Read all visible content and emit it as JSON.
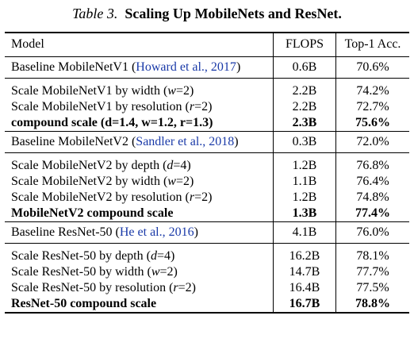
{
  "caption": {
    "number": "Table 3.",
    "title": "Scaling Up MobileNets and ResNet."
  },
  "header": {
    "model": "Model",
    "flops": "FLOPS",
    "acc": "Top-1 Acc."
  },
  "sections": [
    {
      "baseline": {
        "model": "Baseline MobileNetV1",
        "cite": "Howard et al., 2017",
        "flops": "0.6B",
        "acc": "70.6%"
      },
      "rows": [
        {
          "pre": "Scale MobileNetV1 by width (",
          "var": "w",
          "post": "=2)",
          "flops": "2.2B",
          "acc": "74.2%"
        },
        {
          "pre": "Scale MobileNetV1 by resolution (",
          "var": "r",
          "post": "=2)",
          "flops": "2.2B",
          "acc": "72.7%"
        },
        {
          "pre": "compound scale (d=1.4, w=1.2, r=1.3)",
          "flops": "2.3B",
          "acc": "75.6%",
          "bold": true
        }
      ]
    },
    {
      "baseline": {
        "model": "Baseline MobileNetV2",
        "cite": "Sandler et al., 2018",
        "flops": "0.3B",
        "acc": "72.0%"
      },
      "rows": [
        {
          "pre": "Scale MobileNetV2 by depth (",
          "var": "d",
          "post": "=4)",
          "flops": "1.2B",
          "acc": "76.8%"
        },
        {
          "pre": "Scale MobileNetV2 by width (",
          "var": "w",
          "post": "=2)",
          "flops": "1.1B",
          "acc": "76.4%"
        },
        {
          "pre": "Scale MobileNetV2 by resolution (",
          "var": "r",
          "post": "=2)",
          "flops": "1.2B",
          "acc": "74.8%"
        },
        {
          "pre": "MobileNetV2 compound scale",
          "flops": "1.3B",
          "acc": "77.4%",
          "bold": true
        }
      ]
    },
    {
      "baseline": {
        "model": "Baseline ResNet-50",
        "cite": "He et al., 2016",
        "flops": "4.1B",
        "acc": "76.0%"
      },
      "rows": [
        {
          "pre": "Scale ResNet-50 by depth (",
          "var": "d",
          "post": "=4)",
          "flops": "16.2B",
          "acc": "78.1%"
        },
        {
          "pre": "Scale ResNet-50 by width (",
          "var": "w",
          "post": "=2)",
          "flops": "14.7B",
          "acc": "77.7%"
        },
        {
          "pre": "Scale ResNet-50 by resolution (",
          "var": "r",
          "post": "=2)",
          "flops": "16.4B",
          "acc": "77.5%"
        },
        {
          "pre": "ResNet-50 compound scale",
          "flops": "16.7B",
          "acc": "78.8%",
          "bold": true
        }
      ]
    }
  ]
}
